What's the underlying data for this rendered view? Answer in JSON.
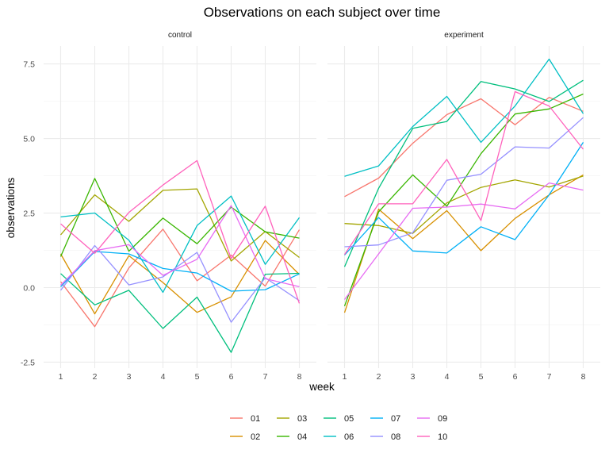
{
  "chart_data": {
    "type": "line",
    "title": "Observations on each subject over time",
    "xlabel": "week",
    "ylabel": "observations",
    "x": [
      1,
      2,
      3,
      4,
      5,
      6,
      7,
      8
    ],
    "x_ticks": [
      "1",
      "2",
      "3",
      "4",
      "5",
      "6",
      "7",
      "8"
    ],
    "ylim": [
      -2.7,
      8.1
    ],
    "y_ticks": [
      -2.5,
      0.0,
      2.5,
      5.0,
      7.5
    ],
    "y_tick_labels": [
      "-2.5",
      "0.0",
      "2.5",
      "5.0",
      "7.5"
    ],
    "grid": true,
    "legend_position": "bottom",
    "colors": {
      "01": "#F8766D",
      "02": "#D89000",
      "03": "#A3A500",
      "04": "#39B600",
      "05": "#00BF7D",
      "06": "#00BFC4",
      "07": "#00B0F6",
      "08": "#9590FF",
      "09": "#E76BF3",
      "10": "#FF62BC"
    },
    "legend_order": [
      "01",
      "02",
      "03",
      "04",
      "05",
      "06",
      "07",
      "08",
      "09",
      "10"
    ],
    "panels": [
      {
        "name": "control",
        "series": [
          {
            "name": "01",
            "values": [
              0.2,
              -1.31,
              0.66,
              1.96,
              0.23,
              1.09,
              0.05,
              1.94
            ]
          },
          {
            "name": "02",
            "values": [
              1.13,
              -0.88,
              1.07,
              0.17,
              -0.83,
              -0.31,
              1.58,
              0.44
            ]
          },
          {
            "name": "03",
            "values": [
              1.77,
              3.11,
              2.22,
              3.26,
              3.31,
              0.89,
              1.88,
              1.01
            ]
          },
          {
            "name": "04",
            "values": [
              1.04,
              3.66,
              1.22,
              2.33,
              1.47,
              2.7,
              1.87,
              1.66
            ]
          },
          {
            "name": "05",
            "values": [
              0.47,
              -0.58,
              -0.09,
              -1.37,
              -0.32,
              -2.17,
              0.45,
              0.48
            ]
          },
          {
            "name": "06",
            "values": [
              2.37,
              2.5,
              1.59,
              -0.16,
              2.08,
              3.07,
              0.78,
              2.35
            ]
          },
          {
            "name": "07",
            "values": [
              0.03,
              1.21,
              1.13,
              0.64,
              0.49,
              -0.12,
              -0.07,
              0.46
            ]
          },
          {
            "name": "08",
            "values": [
              -0.09,
              1.41,
              0.09,
              0.36,
              1.18,
              -1.16,
              0.33,
              -0.44
            ]
          },
          {
            "name": "09",
            "values": [
              0.08,
              1.24,
              1.44,
              0.41,
              0.95,
              2.75,
              0.3,
              0.03
            ]
          },
          {
            "name": "10",
            "values": [
              2.14,
              1.15,
              2.52,
              3.44,
              4.26,
              0.97,
              2.73,
              -0.53
            ]
          }
        ]
      },
      {
        "name": "experiment",
        "series": [
          {
            "name": "01",
            "values": [
              3.05,
              3.67,
              4.84,
              5.8,
              6.33,
              5.46,
              6.38,
              5.91
            ]
          },
          {
            "name": "02",
            "values": [
              -0.84,
              2.63,
              1.64,
              2.58,
              1.24,
              2.32,
              3.11,
              3.78
            ]
          },
          {
            "name": "03",
            "values": [
              2.15,
              2.08,
              1.82,
              2.84,
              3.36,
              3.61,
              3.37,
              3.74
            ]
          },
          {
            "name": "04",
            "values": [
              -0.62,
              2.54,
              3.78,
              2.73,
              4.49,
              5.82,
              5.99,
              6.49
            ]
          },
          {
            "name": "05",
            "values": [
              0.7,
              3.33,
              5.34,
              5.57,
              6.91,
              6.66,
              6.24,
              6.95
            ]
          },
          {
            "name": "06",
            "values": [
              3.73,
              4.08,
              5.4,
              6.41,
              4.87,
              6.09,
              7.66,
              5.83
            ]
          },
          {
            "name": "07",
            "values": [
              1.09,
              2.35,
              1.23,
              1.16,
              2.04,
              1.61,
              3.11,
              4.87
            ]
          },
          {
            "name": "08",
            "values": [
              1.37,
              1.43,
              1.84,
              3.6,
              3.8,
              4.72,
              4.68,
              5.7
            ]
          },
          {
            "name": "09",
            "values": [
              -0.4,
              1.13,
              2.66,
              2.7,
              2.8,
              2.64,
              3.51,
              3.27
            ]
          },
          {
            "name": "10",
            "values": [
              1.11,
              2.81,
              2.81,
              4.3,
              2.25,
              6.57,
              6.09,
              4.64
            ]
          }
        ]
      }
    ]
  }
}
